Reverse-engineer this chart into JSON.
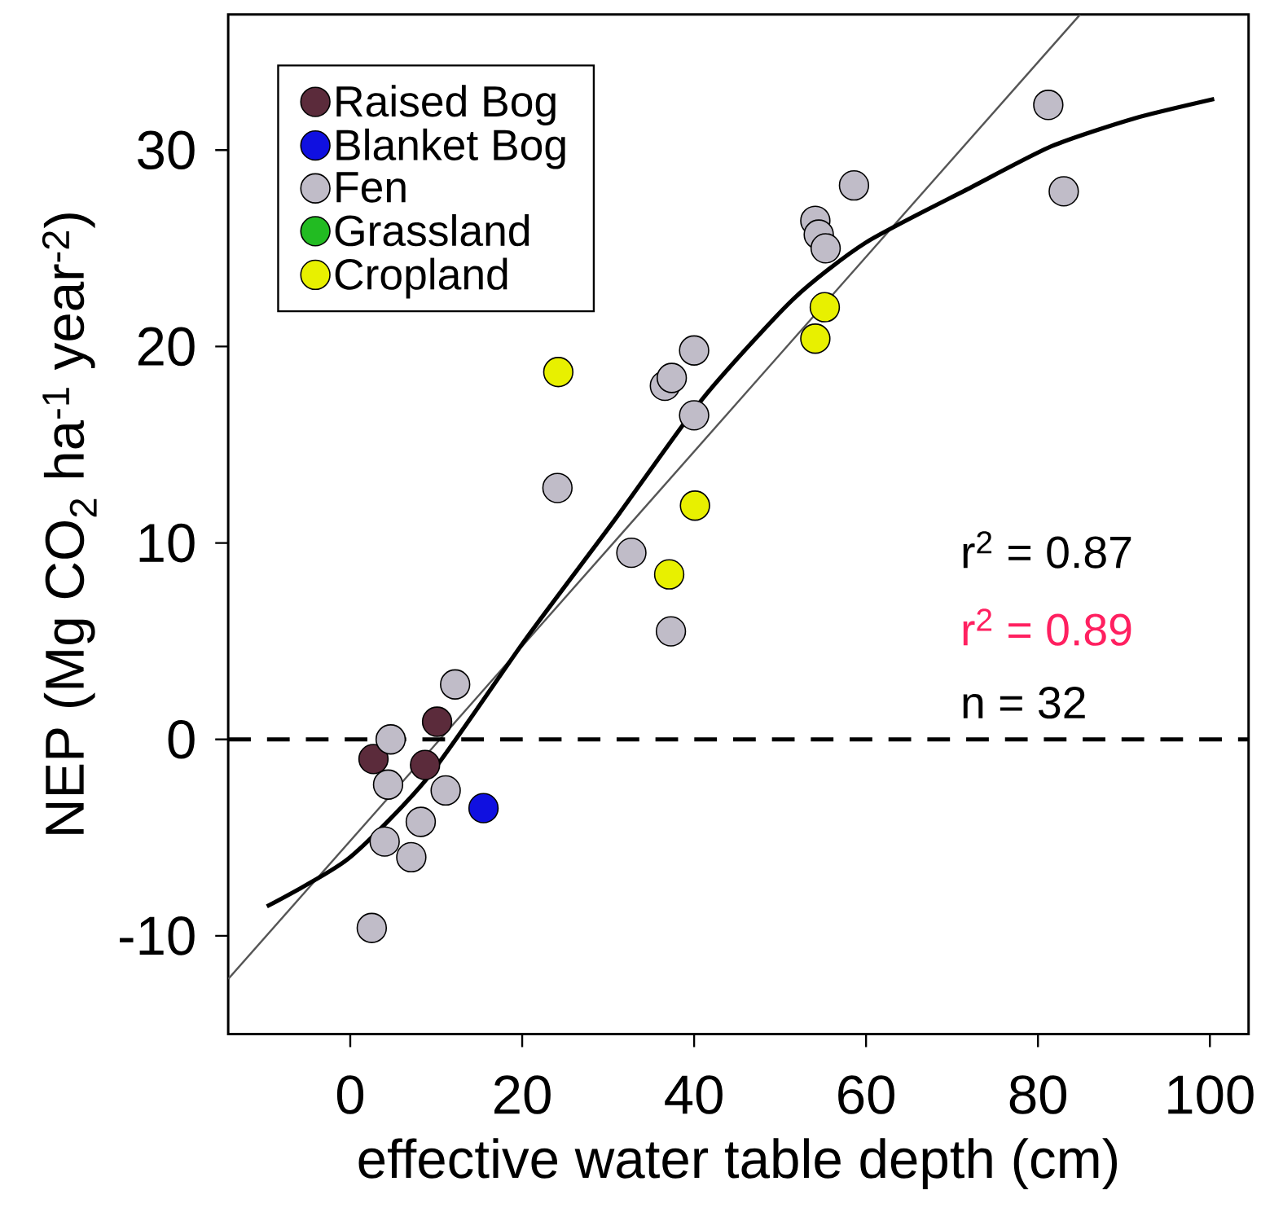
{
  "chart_data": {
    "type": "scatter",
    "xlabel": "effective water table depth (cm)",
    "ylabel": "NEP (Mg CO$_{2}$ ha$^{-1}$ year$^{-2}$)",
    "xlim": [
      -14.2,
      104.5
    ],
    "ylim": [
      -15,
      36.9
    ],
    "xticks": [
      0,
      20,
      40,
      60,
      80,
      100
    ],
    "yticks": [
      -10,
      0,
      10,
      20,
      30
    ],
    "legend": "top left",
    "marker": "circle",
    "grid": false,
    "series": [
      {
        "name": "Raised Bog",
        "color": "#5b2b3b",
        "x": [
          2.7,
          10.1,
          8.7
        ],
        "values": [
          -1.0,
          0.9,
          -1.3
        ]
      },
      {
        "name": "Blanket Bog",
        "color": "#1010e0",
        "x": [
          15.5
        ],
        "values": [
          -3.5
        ]
      },
      {
        "name": "Fen",
        "color": "#c0bcc8",
        "x": [
          4.7,
          12.2,
          11.1,
          4.4,
          8.2,
          4.0,
          7.1,
          2.5,
          24.1,
          32.7,
          37.3,
          36.6,
          37.4,
          40.0,
          40.0,
          54.1,
          54.5,
          55.3,
          58.6,
          81.2,
          83.0
        ],
        "values": [
          0.0,
          2.8,
          -2.6,
          -2.3,
          -4.2,
          -5.2,
          -6.0,
          -9.6,
          12.8,
          9.5,
          5.5,
          18.0,
          18.4,
          19.8,
          16.5,
          26.4,
          25.7,
          25.0,
          28.2,
          32.3,
          27.9
        ]
      },
      {
        "name": "Grassland",
        "color": "#22bb22"
      },
      {
        "name": "Cropland",
        "color": "#e8f000",
        "x": [
          24.2,
          40.1,
          37.1,
          54.1,
          55.2
        ],
        "values": [
          18.7,
          11.9,
          8.4,
          20.4,
          22.0
        ]
      },
      {
        "type": "line",
        "marker": "none",
        "color": "#555555",
        "x": [
          -14.2,
          84.9
        ],
        "values": [
          -12.2,
          36.9
        ]
      },
      {
        "type": "line",
        "marker": "none",
        "color": "#000000",
        "x": [
          -9.7,
          -0.3,
          9.1,
          20.4,
          30.8,
          41.1,
          51.5,
          60.0,
          72.2,
          81.6,
          91.1,
          100.5
        ],
        "values": [
          -8.5,
          -6.1,
          -1.9,
          5.1,
          11.2,
          17.4,
          22.4,
          25.3,
          28.1,
          30.2,
          31.6,
          32.6
        ]
      }
    ],
    "ref_lines": [
      {
        "axis": "y",
        "value": 0,
        "color": "#000000",
        "line_style": "dashed"
      }
    ],
    "annotations": [
      "r$^{2}$ = 0.87",
      "r$^{2}$ = 0.89",
      "n = 32"
    ]
  }
}
